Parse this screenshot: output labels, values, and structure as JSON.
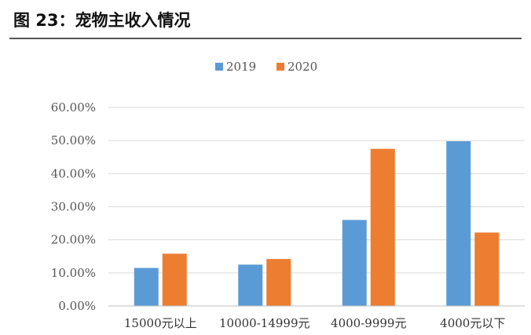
{
  "figure": {
    "title": "图 23：宠物主收入情况"
  },
  "chart_data": {
    "type": "bar",
    "categories": [
      "15000元以上",
      "10000-14999元",
      "4000-9999元",
      "4000元以下"
    ],
    "series": [
      {
        "name": "2019",
        "color": "#5b9bd5",
        "values": [
          11.5,
          12.5,
          26.0,
          49.8
        ]
      },
      {
        "name": "2020",
        "color": "#ed7d31",
        "values": [
          15.8,
          14.2,
          47.5,
          22.2
        ]
      }
    ],
    "y_ticks": [
      "0.00%",
      "10.00%",
      "20.00%",
      "30.00%",
      "40.00%",
      "50.00%",
      "60.00%"
    ],
    "ylim": [
      0,
      60
    ],
    "grid": true,
    "legend_position": "top-center"
  }
}
